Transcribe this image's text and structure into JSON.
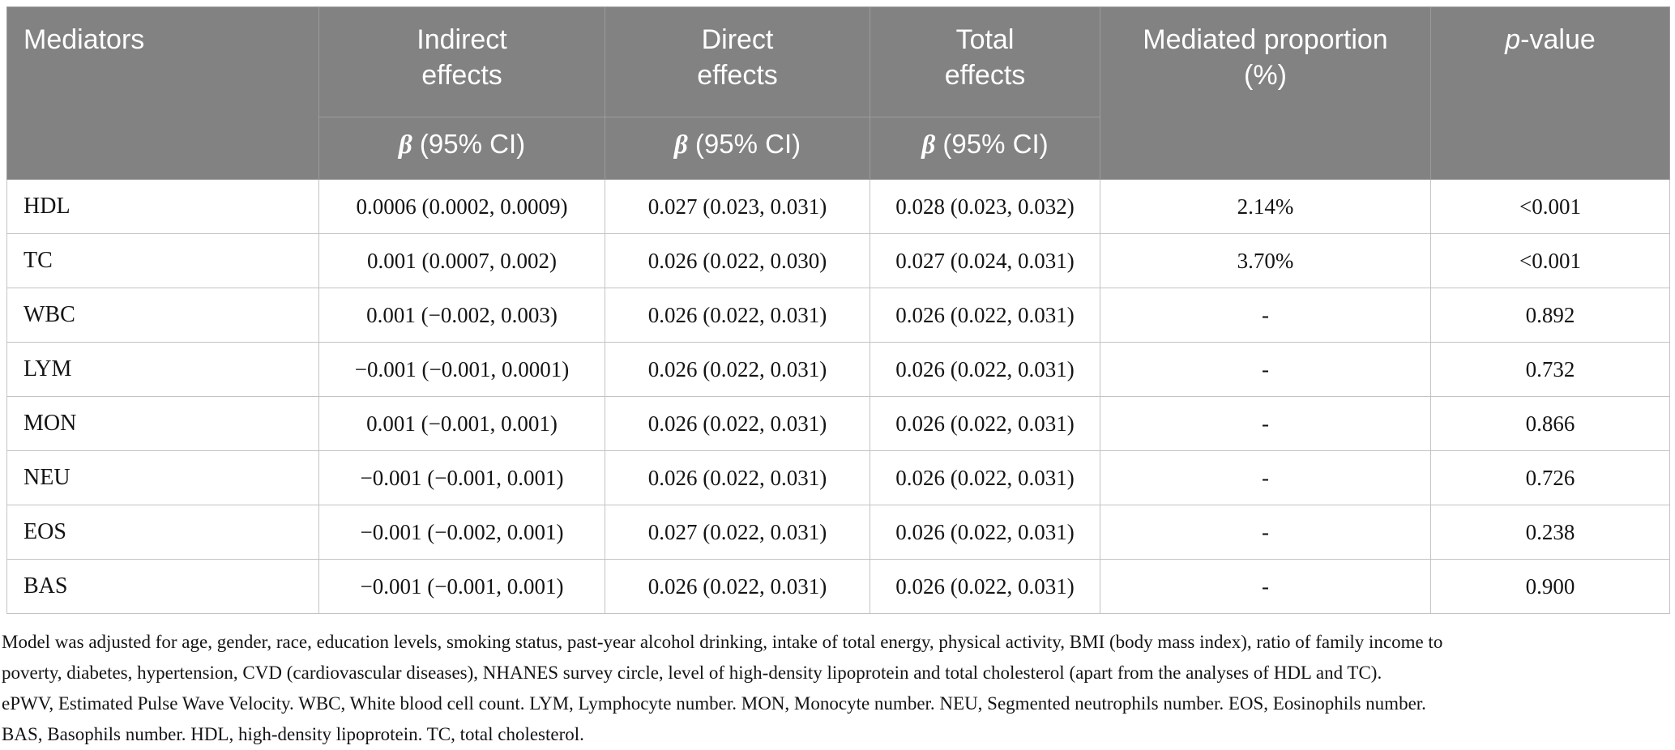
{
  "colors": {
    "header_bg": "#828282",
    "header_text": "#ffffff",
    "body_text": "#141414",
    "border_header": "#9b9b9b",
    "border_body": "#c3c3c3"
  },
  "table": {
    "header": {
      "mediators": "Mediators",
      "indirect": "Indirect\neffects",
      "direct": "Direct\neffects",
      "total": "Total\neffects",
      "mediated": "Mediated proportion\n(%)",
      "p_italic": "p",
      "p_rest": "-value",
      "beta": "β",
      "ci": " (95% CI)"
    },
    "rows": [
      {
        "mediator": "HDL",
        "indirect": "0.0006 (0.0002, 0.0009)",
        "direct": "0.027 (0.023, 0.031)",
        "total": "0.028 (0.023, 0.032)",
        "mediated": "2.14%",
        "p": "<0.001"
      },
      {
        "mediator": "TC",
        "indirect": "0.001 (0.0007, 0.002)",
        "direct": "0.026 (0.022, 0.030)",
        "total": "0.027 (0.024, 0.031)",
        "mediated": "3.70%",
        "p": "<0.001"
      },
      {
        "mediator": "WBC",
        "indirect": "0.001 (−0.002, 0.003)",
        "direct": "0.026 (0.022, 0.031)",
        "total": "0.026 (0.022, 0.031)",
        "mediated": "-",
        "p": "0.892"
      },
      {
        "mediator": "LYM",
        "indirect": "−0.001 (−0.001, 0.0001)",
        "direct": "0.026 (0.022, 0.031)",
        "total": "0.026 (0.022, 0.031)",
        "mediated": "-",
        "p": "0.732"
      },
      {
        "mediator": "MON",
        "indirect": "0.001 (−0.001, 0.001)",
        "direct": "0.026 (0.022, 0.031)",
        "total": "0.026 (0.022, 0.031)",
        "mediated": "-",
        "p": "0.866"
      },
      {
        "mediator": "NEU",
        "indirect": "−0.001 (−0.001, 0.001)",
        "direct": "0.026 (0.022, 0.031)",
        "total": "0.026 (0.022, 0.031)",
        "mediated": "-",
        "p": "0.726"
      },
      {
        "mediator": "EOS",
        "indirect": "−0.001 (−0.002, 0.001)",
        "direct": "0.027 (0.022, 0.031)",
        "total": "0.026 (0.022, 0.031)",
        "mediated": "-",
        "p": "0.238"
      },
      {
        "mediator": "BAS",
        "indirect": "−0.001 (−0.001, 0.001)",
        "direct": "0.026 (0.022, 0.031)",
        "total": "0.026 (0.022, 0.031)",
        "mediated": "-",
        "p": "0.900"
      }
    ]
  },
  "footnotes": {
    "lines": [
      "Model was adjusted for age, gender, race, education levels, smoking status, past-year alcohol drinking, intake of total energy, physical activity, BMI (body mass index), ratio of family income to",
      "poverty, diabetes, hypertension, CVD (cardiovascular diseases), NHANES survey circle, level of high-density lipoprotein and total cholesterol (apart from the analyses of HDL and TC).",
      "ePWV, Estimated Pulse Wave Velocity. WBC, White blood cell count. LYM, Lymphocyte number. MON, Monocyte number. NEU, Segmented neutrophils number. EOS, Eosinophils number.",
      "BAS, Basophils number. HDL, high-density lipoprotein. TC, total cholesterol."
    ]
  }
}
